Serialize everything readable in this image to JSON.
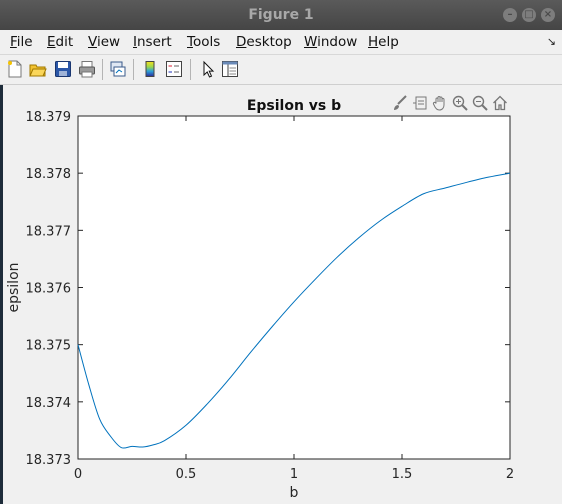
{
  "window": {
    "title": "Figure 1"
  },
  "menu": [
    {
      "mnemonic": "F",
      "rest": "ile"
    },
    {
      "mnemonic": "E",
      "rest": "dit"
    },
    {
      "mnemonic": "V",
      "rest": "iew"
    },
    {
      "mnemonic": "I",
      "rest": "nsert"
    },
    {
      "mnemonic": "T",
      "rest": "ools"
    },
    {
      "mnemonic": "D",
      "rest": "esktop"
    },
    {
      "mnemonic": "W",
      "rest": "indow"
    },
    {
      "mnemonic": "H",
      "rest": "elp"
    }
  ],
  "menu_overflow_glyph": "↘",
  "toolbar_icons": [
    "new-figure-icon",
    "open-file-icon",
    "save-icon",
    "print-icon",
    "link-plot-icon",
    "insert-colorbar-icon",
    "insert-legend-icon",
    "edit-plot-pointer-icon",
    "property-inspector-icon"
  ],
  "axes_toolbar_icons": [
    "brush-icon",
    "data-tips-icon",
    "pan-icon",
    "zoom-in-icon",
    "zoom-out-icon",
    "restore-view-icon"
  ],
  "colors": {
    "line": "#0072bd",
    "axes_bg": "#ffffff",
    "figure_bg": "#f0f0f0"
  },
  "chart_data": {
    "type": "line",
    "title": "Epsilon vs b",
    "xlabel": "b",
    "ylabel": "epsilon",
    "xlim": [
      0,
      2
    ],
    "ylim": [
      18.373,
      18.379
    ],
    "xticks": [
      0,
      0.5,
      1,
      1.5,
      2
    ],
    "xtick_labels": [
      "0",
      "0.5",
      "1",
      "1.5",
      "2"
    ],
    "yticks": [
      18.373,
      18.374,
      18.375,
      18.376,
      18.377,
      18.378,
      18.379
    ],
    "ytick_labels": [
      "18.373",
      "18.374",
      "18.375",
      "18.376",
      "18.377",
      "18.378",
      "18.379"
    ],
    "grid": false,
    "series": [
      {
        "x": [
          0,
          0.05,
          0.1,
          0.15,
          0.2,
          0.25,
          0.3,
          0.35,
          0.4,
          0.5,
          0.6,
          0.7,
          0.8,
          0.9,
          1.0,
          1.1,
          1.2,
          1.3,
          1.4,
          1.5,
          1.6,
          1.7,
          1.8,
          1.9,
          2.0
        ],
        "y": [
          18.375,
          18.3743,
          18.3737,
          18.3734,
          18.3732,
          18.37322,
          18.37321,
          18.37325,
          18.37332,
          18.37359,
          18.37397,
          18.3744,
          18.37487,
          18.37532,
          18.37575,
          18.37615,
          18.37653,
          18.37687,
          18.37717,
          18.37742,
          18.37764,
          18.37774,
          18.37784,
          18.37793,
          18.378
        ]
      }
    ]
  }
}
